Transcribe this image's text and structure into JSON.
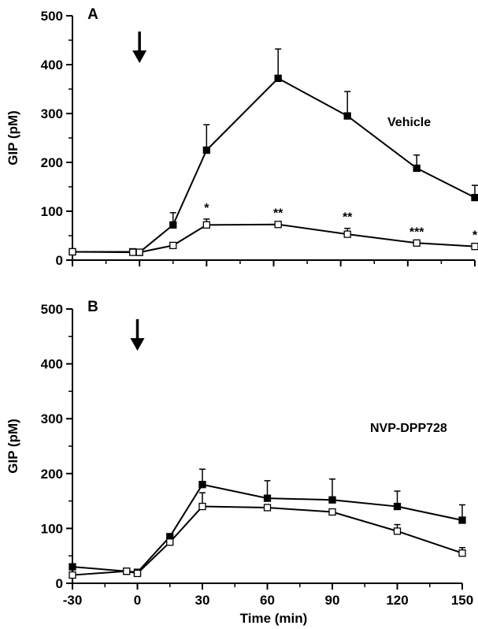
{
  "chart_data": [
    {
      "type": "line",
      "panel_label": "A",
      "annotation": "Vehicle",
      "xlabel": "",
      "ylabel": "GIP (pM)",
      "xlim": [
        -30,
        150
      ],
      "ylim": [
        0,
        500
      ],
      "xticks": [
        -30,
        0,
        30,
        60,
        90,
        120,
        150
      ],
      "yticks": [
        0,
        100,
        200,
        300,
        400,
        500
      ],
      "arrow_at_x": 0,
      "grid": false,
      "series": [
        {
          "marker": "filled-square",
          "x": [
            -30,
            -3,
            0,
            15,
            30,
            62,
            93,
            124,
            150
          ],
          "y": [
            17,
            17,
            16,
            72,
            225,
            372,
            295,
            188,
            128
          ],
          "err": [
            0,
            0,
            0,
            25,
            52,
            60,
            50,
            27,
            25
          ]
        },
        {
          "marker": "open-square",
          "x": [
            -30,
            -3,
            0,
            15,
            30,
            62,
            93,
            124,
            150
          ],
          "y": [
            17,
            16,
            16,
            30,
            72,
            73,
            53,
            35,
            28
          ],
          "err": [
            0,
            0,
            0,
            0,
            12,
            0,
            12,
            0,
            0
          ]
        }
      ],
      "significance": [
        {
          "x": 30,
          "text": "*"
        },
        {
          "x": 62,
          "text": "**"
        },
        {
          "x": 93,
          "text": "**"
        },
        {
          "x": 124,
          "text": "***"
        },
        {
          "x": 150,
          "text": "*"
        }
      ]
    },
    {
      "type": "line",
      "panel_label": "B",
      "annotation": "NVP-DPP728",
      "xlabel": "Time (min)",
      "ylabel": "GIP (pM)",
      "xlim": [
        -30,
        150
      ],
      "ylim": [
        0,
        500
      ],
      "xticks": [
        -30,
        0,
        30,
        60,
        90,
        120,
        150
      ],
      "xtick_labels": [
        "-30",
        "0",
        "30",
        "60",
        "90",
        "120",
        "150"
      ],
      "yticks": [
        0,
        100,
        200,
        300,
        400,
        500
      ],
      "arrow_at_x": 0,
      "grid": false,
      "series": [
        {
          "marker": "filled-square",
          "x": [
            -30,
            -5,
            0,
            15,
            30,
            60,
            90,
            120,
            150
          ],
          "y": [
            30,
            22,
            20,
            85,
            180,
            155,
            152,
            140,
            115
          ],
          "err": [
            0,
            0,
            0,
            0,
            28,
            32,
            38,
            28,
            28
          ]
        },
        {
          "marker": "open-square",
          "x": [
            -30,
            -5,
            0,
            15,
            30,
            60,
            90,
            120,
            150
          ],
          "y": [
            15,
            22,
            18,
            75,
            140,
            138,
            130,
            95,
            55
          ],
          "err": [
            0,
            0,
            0,
            0,
            25,
            0,
            0,
            12,
            10
          ]
        }
      ],
      "significance": []
    }
  ]
}
